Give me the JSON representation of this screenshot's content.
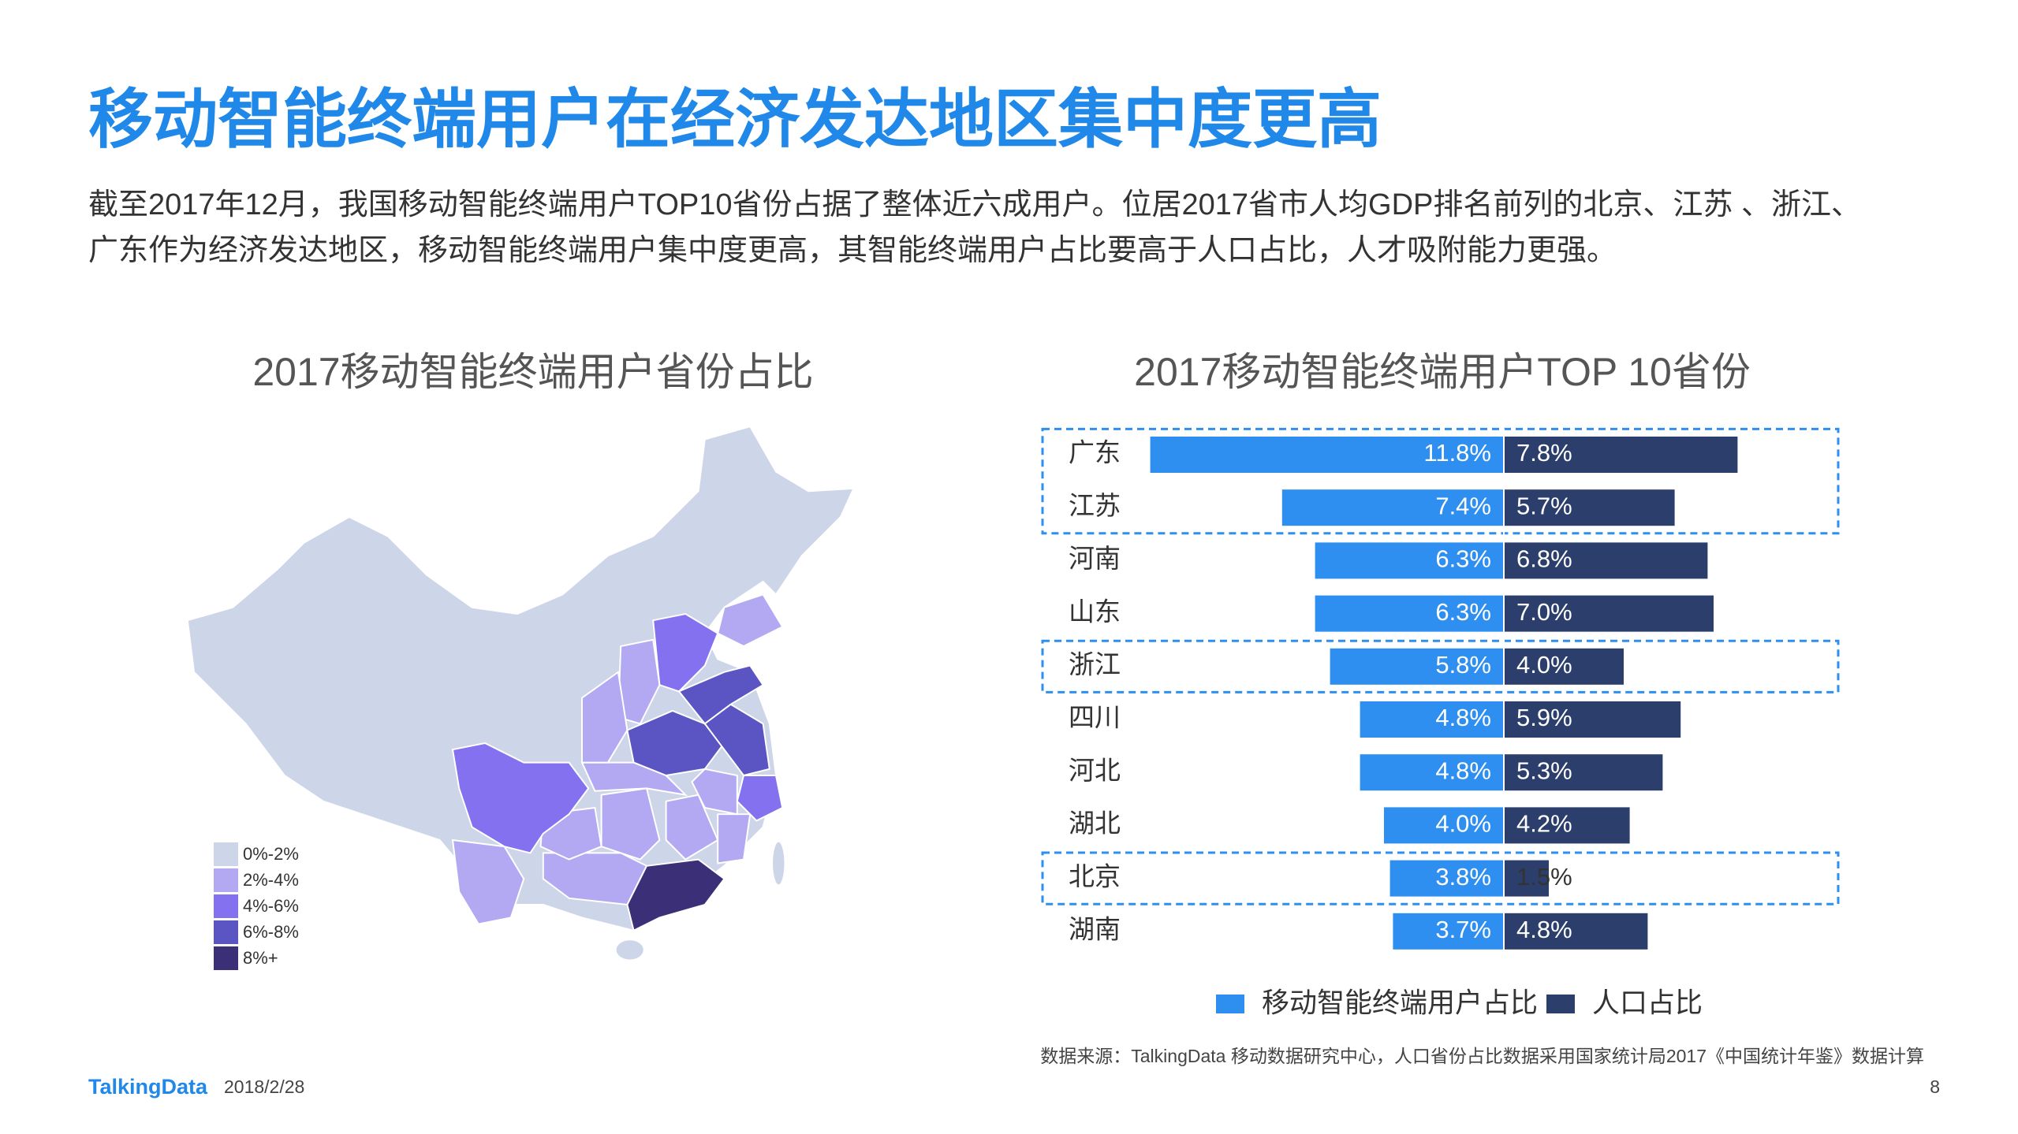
{
  "header": {
    "title": "移动智能终端用户在经济发达地区集中度更高",
    "subtitle": [
      "截至2017年12月，我国移动智能终端用户TOP10省份占据了整体近六成用户。位居2017省市人均GDP排名前列的北京、江苏 、浙江、",
      "广东作为经济发达地区，移动智能终端用户集中度更高，其智能终端用户占比要高于人口占比，人才吸附能力更强。"
    ]
  },
  "map": {
    "title": "2017移动智能终端用户省份占比",
    "legend": [
      {
        "label": "0%-2%",
        "color": "#cdd5e8"
      },
      {
        "label": "2%-4%",
        "color": "#b3a9f3"
      },
      {
        "label": "4%-6%",
        "color": "#8471ef"
      },
      {
        "label": "6%-8%",
        "color": "#5b55c4"
      },
      {
        "label": "8%+",
        "color": "#3b2f78"
      }
    ]
  },
  "chart_data": {
    "type": "butterfly",
    "title": "2017移动智能终端用户TOP 10省份",
    "categories": [
      "广东",
      "江苏",
      "河南",
      "山东",
      "浙江",
      "四川",
      "河北",
      "湖北",
      "北京",
      "湖南"
    ],
    "series": [
      {
        "name": "移动智能终端用户占比",
        "color": "#2f8ff0",
        "values": [
          11.8,
          7.4,
          6.3,
          6.3,
          5.8,
          4.8,
          4.8,
          4.0,
          3.8,
          3.7
        ],
        "value_labels": [
          "11.8%",
          "7.4%",
          "6.3%",
          "6.3%",
          "5.8%",
          "4.8%",
          "4.8%",
          "4.0%",
          "3.8%",
          "3.7%"
        ]
      },
      {
        "name": "人口占比",
        "color": "#2c3e6b",
        "values": [
          7.8,
          5.7,
          6.8,
          7.0,
          4.0,
          5.9,
          5.3,
          4.2,
          1.5,
          4.8
        ],
        "value_labels": [
          "7.8%",
          "5.7%",
          "6.8%",
          "7.0%",
          "4.0%",
          "5.9%",
          "5.3%",
          "4.2%",
          "1.5%",
          "4.8%"
        ]
      }
    ],
    "highlight_ranges": [
      [
        0,
        1
      ],
      [
        4,
        4
      ],
      [
        8,
        8
      ]
    ],
    "highlight_color": "#2f8ff0"
  },
  "footer": {
    "source": "数据来源：TalkingData 移动数据研究中心，人口省份占比数据采用国家统计局2017《中国统计年鉴》数据计算",
    "brand": "TalkingData",
    "date": "2018/2/28",
    "page": "8"
  }
}
